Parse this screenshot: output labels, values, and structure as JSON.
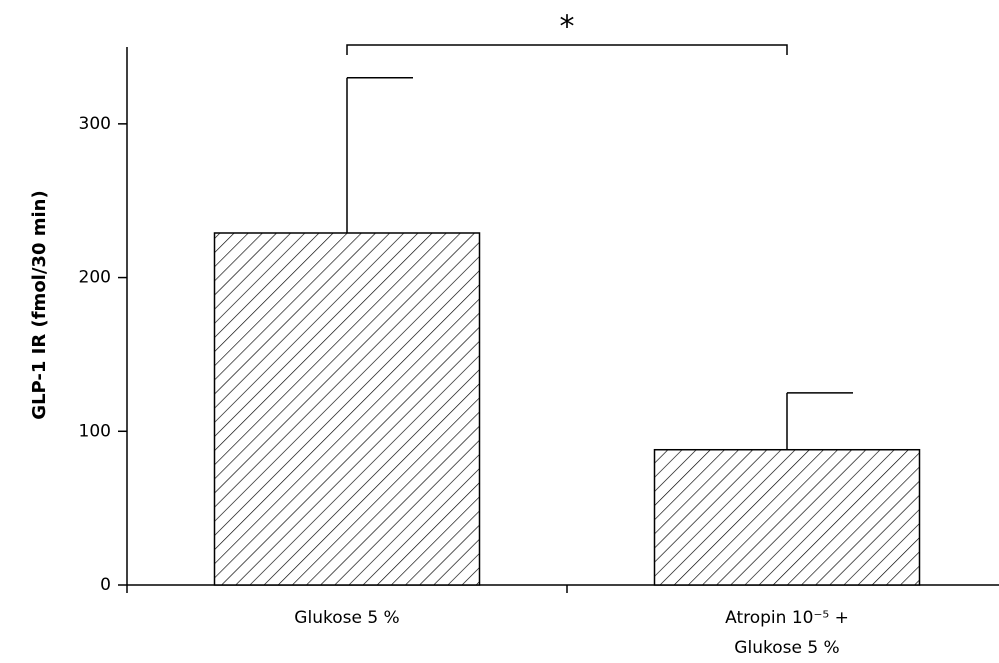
{
  "chart_data": {
    "type": "bar",
    "y_label": "GLP-1 IR (fmol/30 min)",
    "categories": [
      "Glukose 5 %",
      "Atropin 10⁻⁵ +\nGlukose 5 %"
    ],
    "values": [
      229,
      88
    ],
    "errors": [
      101,
      37
    ],
    "color": "#000000",
    "pattern": "hatch",
    "annotation": "*",
    "ylim": [
      0,
      350
    ],
    "yticks": [
      0,
      100,
      200,
      300
    ]
  }
}
